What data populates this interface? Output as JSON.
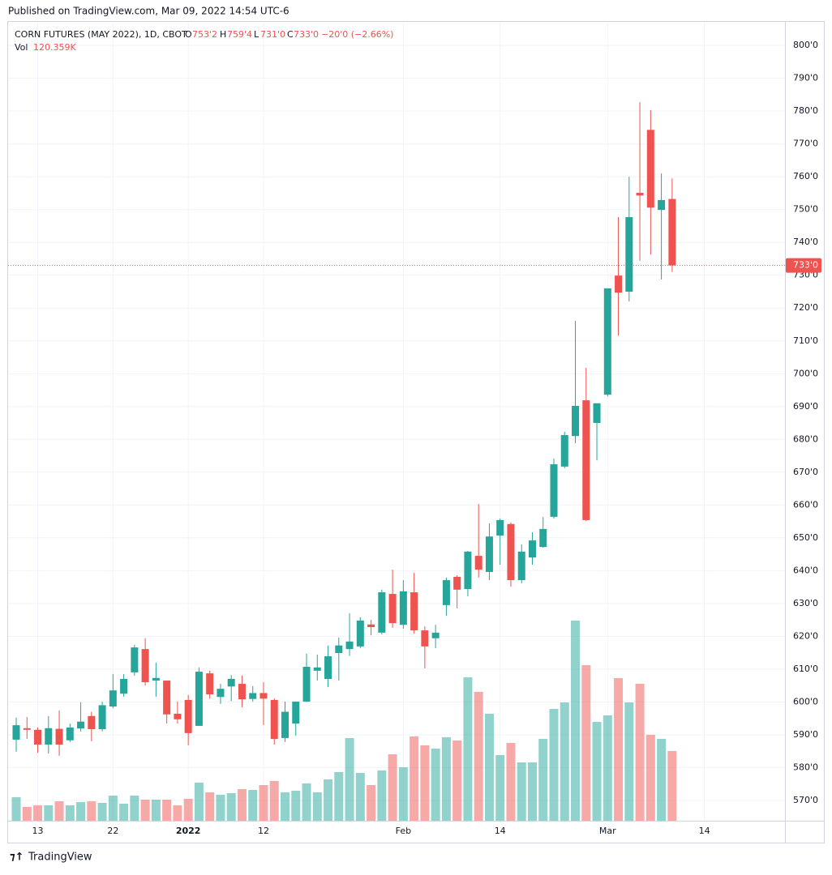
{
  "published": "Published on TradingView.com, Mar 09, 2022 14:54 UTC-6",
  "footer": "TradingView",
  "chart_data": {
    "type": "candlestick",
    "title": "CORN FUTURES (MAY 2022), 1D, CBOT",
    "legend": {
      "o": "O",
      "open": "753'2",
      "h": "H",
      "high": "759'4",
      "l": "L",
      "low": "731'0",
      "c": "C",
      "close": "733'0",
      "change": "−20'0 (−2.66%)",
      "vol": "Vol",
      "volume": "120.359K"
    },
    "up_color": "#26a69a",
    "down_color": "#ef5350",
    "categories": [
      null,
      null,
      "13",
      null,
      null,
      null,
      null,
      null,
      null,
      "22",
      null,
      null,
      null,
      null,
      null,
      null,
      "2022",
      null,
      null,
      null,
      null,
      null,
      null,
      "12",
      null,
      null,
      null,
      null,
      null,
      null,
      null,
      null,
      null,
      null,
      null,
      null,
      "Feb",
      null,
      null,
      null,
      null,
      null,
      null,
      null,
      null,
      "14",
      null,
      null,
      null,
      null,
      null,
      null,
      null,
      null,
      null,
      "Mar",
      null,
      null,
      null,
      null,
      null,
      null,
      null,
      null,
      "14"
    ],
    "open": [
      588.5,
      592,
      591.5,
      587,
      591.8,
      588.3,
      591.9,
      595.7,
      591.7,
      598.6,
      602.5,
      609,
      616.1,
      606.5,
      606.5,
      596.4,
      600.6,
      592.7,
      608.7,
      601.5,
      604.7,
      605.5,
      600.9,
      602.7,
      600.6,
      589,
      593.4,
      600.1,
      609.5,
      607,
      614.9,
      616.1,
      616.9,
      623.6,
      621.1,
      632.9,
      623.5,
      633.4,
      621.8,
      619.4,
      629.5,
      638.1,
      634.4,
      644.5,
      639.6,
      650.7,
      654.2,
      637.1,
      644,
      647.2,
      656.4,
      671.7,
      681,
      691.9,
      685,
      693.6,
      729.9,
      725,
      755.1,
      774.3,
      749.9,
      753.25,
      null,
      null,
      null
    ],
    "high": [
      595.2,
      595.4,
      592.2,
      595.7,
      597.4,
      593.4,
      599.9,
      597,
      600.1,
      608.5,
      608.5,
      617.4,
      619.4,
      612,
      606.5,
      600.1,
      602.1,
      610.5,
      609.5,
      605.5,
      608.2,
      608,
      604.8,
      606,
      601.1,
      600.1,
      600.1,
      614.7,
      614.4,
      617.2,
      619.6,
      627,
      625.8,
      625,
      634.2,
      640.3,
      637.1,
      639.3,
      623,
      623.5,
      637.9,
      638.6,
      646,
      660.3,
      654.4,
      655.9,
      654.7,
      648,
      651.7,
      656.4,
      674.1,
      682.3,
      716.1,
      701.8,
      690.9,
      726,
      747.7,
      760,
      782.7,
      780.3,
      761,
      759.5,
      null,
      null,
      null
    ],
    "low": [
      584.8,
      588.7,
      584.5,
      584.3,
      583.6,
      587.8,
      591,
      588,
      591,
      598.1,
      601.6,
      608,
      605,
      601.6,
      593.4,
      593.4,
      586.8,
      592.7,
      601,
      599.4,
      600.3,
      598.4,
      600.1,
      592.9,
      587,
      587.8,
      589.7,
      599.9,
      606.5,
      604.5,
      606.5,
      614,
      616.4,
      620.3,
      620.6,
      622.6,
      622.3,
      620.8,
      610.2,
      616.4,
      626.3,
      628.5,
      632.2,
      637.9,
      637.1,
      641.8,
      635.1,
      636.1,
      641.8,
      647,
      655.9,
      671.2,
      678.8,
      655.1,
      673.6,
      693.1,
      711.6,
      722,
      734.4,
      736.3,
      728.7,
      731,
      null,
      null,
      null
    ],
    "close": [
      592.9,
      591.5,
      587,
      592,
      587,
      592.2,
      594,
      591.7,
      599,
      603.5,
      607,
      616.6,
      606,
      607.3,
      596.2,
      594.7,
      590.5,
      609.2,
      602.3,
      604,
      607,
      600.8,
      602.7,
      601,
      588.7,
      597,
      600.1,
      610.7,
      610.5,
      613.9,
      617.2,
      618.4,
      624.8,
      622.8,
      633.4,
      624,
      633.7,
      621.8,
      616.9,
      621.1,
      637.1,
      634.2,
      645.8,
      640.3,
      650.4,
      655.4,
      637.1,
      645.8,
      649.2,
      652.7,
      672.4,
      681.3,
      690.2,
      655.4,
      691,
      726,
      724.7,
      747.7,
      754.3,
      750.6,
      752.9,
      733,
      null,
      null,
      null
    ],
    "volume": [
      40.6,
      23.8,
      26.6,
      26.6,
      33.6,
      26.6,
      32.2,
      33.6,
      30.8,
      43.4,
      29.4,
      43.4,
      36.4,
      36.4,
      36.4,
      26.6,
      37.8,
      65.8,
      49,
      44.8,
      47.6,
      54.6,
      53.2,
      61.6,
      68.6,
      49,
      51.8,
      64.4,
      49,
      71.4,
      84,
      142.8,
      82.6,
      61.6,
      86.8,
      114.8,
      92.4,
      145.6,
      130.2,
      124.6,
      144.2,
      138.6,
      247.8,
      222.6,
      184.8,
      113.4,
      134.4,
      100.8,
      100.8,
      141.4,
      193.2,
      204.4,
      345.8,
      268.8,
      170.8,
      182,
      246.4,
      204.4,
      236.6,
      148.4,
      141.4,
      120.359,
      null,
      null,
      null
    ],
    "ylim": [
      563.8,
      807.2
    ],
    "yticks": [
      {
        "value": 570,
        "label": "570'0"
      },
      {
        "value": 580,
        "label": "580'0"
      },
      {
        "value": 590,
        "label": "590'0"
      },
      {
        "value": 600,
        "label": "600'0"
      },
      {
        "value": 610,
        "label": "610'0"
      },
      {
        "value": 620,
        "label": "620'0"
      },
      {
        "value": 630,
        "label": "630'0"
      },
      {
        "value": 640,
        "label": "640'0"
      },
      {
        "value": 650,
        "label": "650'0"
      },
      {
        "value": 660,
        "label": "660'0"
      },
      {
        "value": 670,
        "label": "670'0"
      },
      {
        "value": 680,
        "label": "680'0"
      },
      {
        "value": 690,
        "label": "690'0"
      },
      {
        "value": 700,
        "label": "700'0"
      },
      {
        "value": 710,
        "label": "710'0"
      },
      {
        "value": 720,
        "label": "720'0"
      },
      {
        "value": 730,
        "label": "730'0"
      },
      {
        "value": 740,
        "label": "740'0"
      },
      {
        "value": 750,
        "label": "750'0"
      },
      {
        "value": 760,
        "label": "760'0"
      },
      {
        "value": 770,
        "label": "770'0"
      },
      {
        "value": 780,
        "label": "780'0"
      },
      {
        "value": 790,
        "label": "790'0"
      },
      {
        "value": 800,
        "label": "800'0"
      }
    ],
    "last_price": {
      "value": 733,
      "label": "733'0"
    },
    "grid": true
  }
}
